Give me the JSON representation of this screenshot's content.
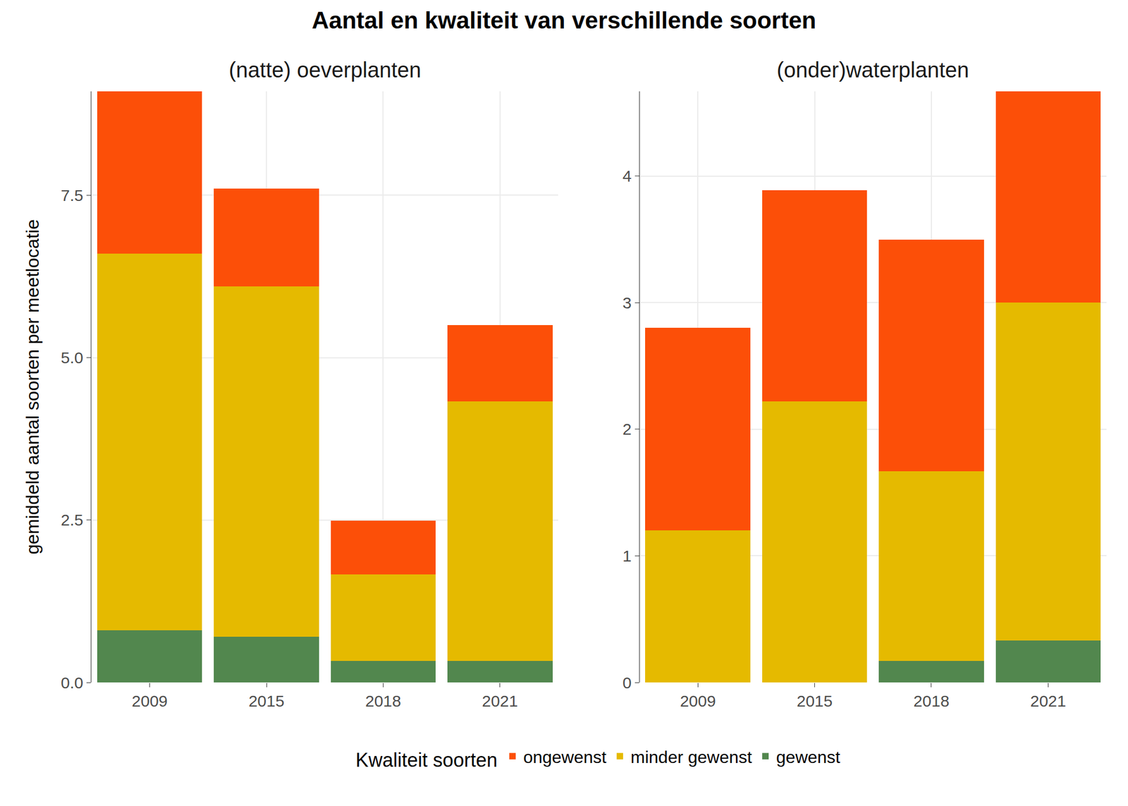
{
  "title": "Aantal en kwaliteit van verschillende soorten",
  "y_label": "gemiddeld aantal soorten per meetlocatie",
  "legend_title": "Kwaliteit soorten",
  "legend": "bottom",
  "chart_data": [
    {
      "type": "bar",
      "title": "(natte) oeverplanten",
      "stacked": true,
      "grid": true,
      "categories": [
        "2009",
        "2015",
        "2018",
        "2021"
      ],
      "series": [
        {
          "name": "gewenst",
          "color": "#52874e",
          "values": [
            0.8,
            0.7,
            0.33,
            0.33
          ]
        },
        {
          "name": "minder gewenst",
          "color": "#e5ba00",
          "values": [
            5.8,
            5.4,
            1.33,
            4.0
          ]
        },
        {
          "name": "ongewenst",
          "color": "#fc4f08",
          "values": [
            2.5,
            1.5,
            0.83,
            1.17
          ]
        }
      ],
      "ylim": [
        0,
        9.1
      ],
      "yticks": [
        {
          "value": 0,
          "label": "0.0"
        },
        2.5,
        {
          "value": 5,
          "label": "5.0"
        },
        7.5
      ]
    },
    {
      "type": "bar",
      "title": "(onder)waterplanten",
      "stacked": true,
      "grid": true,
      "categories": [
        "2009",
        "2015",
        "2018",
        "2021"
      ],
      "series": [
        {
          "name": "gewenst",
          "color": "#52874e",
          "values": [
            0,
            0,
            0.17,
            0.33
          ]
        },
        {
          "name": "minder gewenst",
          "color": "#e5ba00",
          "values": [
            1.2,
            2.22,
            1.5,
            2.67
          ]
        },
        {
          "name": "ongewenst",
          "color": "#fc4f08",
          "values": [
            1.6,
            1.67,
            1.83,
            1.67
          ]
        }
      ],
      "ylim": [
        0,
        4.67
      ],
      "yticks": [
        0,
        1,
        2,
        3,
        4
      ]
    }
  ]
}
